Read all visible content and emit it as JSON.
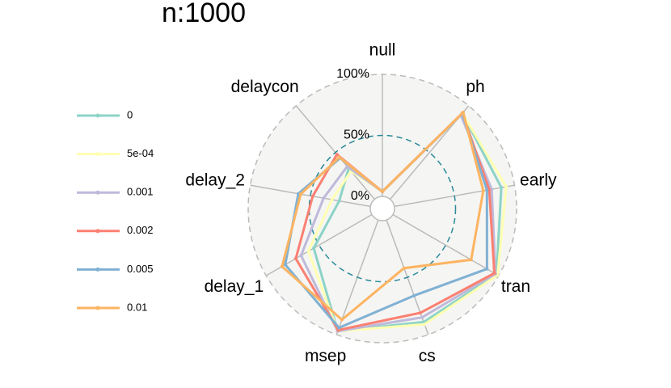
{
  "chart_data": {
    "type": "radar",
    "title": "n:1000",
    "categories": [
      "null",
      "ph",
      "early",
      "tran",
      "cs",
      "msep",
      "delay_1",
      "delay_2",
      "delaycon"
    ],
    "rlim": [
      0,
      100
    ],
    "rticks": [
      {
        "value": 0,
        "label": "0%"
      },
      {
        "value": 50,
        "label": "50%"
      },
      {
        "value": 100,
        "label": "100%"
      }
    ],
    "series": [
      {
        "name": "0",
        "color": "#8dd3c7",
        "values": [
          4,
          92,
          89,
          98,
          89,
          97,
          55,
          26,
          33
        ]
      },
      {
        "name": "5e-04",
        "color": "#ffffb3",
        "values": [
          4,
          92,
          93,
          99,
          91,
          97,
          60,
          32,
          30
        ]
      },
      {
        "name": "0.001",
        "color": "#bebada",
        "values": [
          4,
          90,
          81,
          97,
          85,
          97,
          67,
          39,
          35
        ]
      },
      {
        "name": "0.002",
        "color": "#fb8072",
        "values": [
          4,
          92,
          79,
          96,
          81,
          96,
          72,
          48,
          48
        ]
      },
      {
        "name": "0.005",
        "color": "#80b1d3",
        "values": [
          4,
          92,
          77,
          89,
          66,
          94,
          82,
          60,
          44
        ]
      },
      {
        "name": "0.01",
        "color": "#fdb462",
        "values": [
          4,
          93,
          74,
          74,
          42,
          87,
          85,
          58,
          45
        ]
      }
    ]
  }
}
